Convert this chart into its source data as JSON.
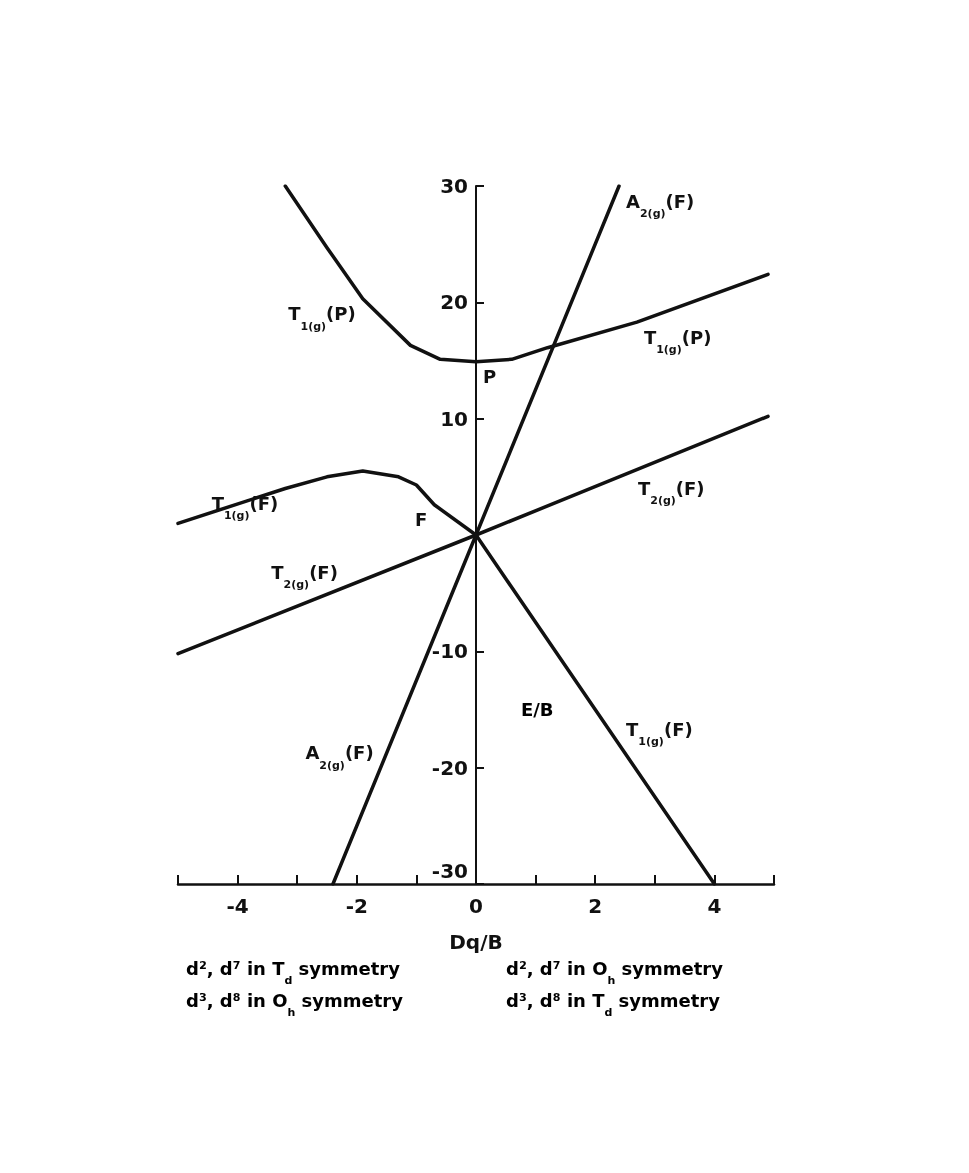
{
  "chart_data": {
    "type": "line",
    "xlabel": "Dq/B",
    "ylabel": "E/B",
    "xlim": [
      -5,
      5
    ],
    "ylim": [
      -30,
      30
    ],
    "xticks": [
      {
        "value": -5,
        "label": null
      },
      -4,
      {
        "value": -3,
        "label": null
      },
      -2,
      {
        "value": -1,
        "label": null
      },
      0,
      {
        "value": 1,
        "label": null
      },
      2,
      {
        "value": 3,
        "label": null
      },
      4,
      {
        "value": 5,
        "label": null
      }
    ],
    "yticks": [
      -30,
      -20,
      -10,
      10,
      20,
      30
    ],
    "marker": "none",
    "line_style": "solid",
    "series": [
      {
        "color": "#111111",
        "x": [
          -2.4,
          0,
          2.4
        ],
        "values": [
          -30,
          0,
          30
        ]
      },
      {
        "color": "#111111",
        "x": [
          -5,
          0,
          4.9
        ],
        "values": [
          -10.2,
          0,
          10.2
        ]
      },
      {
        "color": "#111111",
        "x": [
          -5,
          -3.2,
          -2.5,
          -1.9,
          -1.3,
          -1.0,
          -0.7,
          0,
          4
        ],
        "values": [
          1,
          4,
          5,
          5.5,
          5,
          4.3,
          2.6,
          0,
          -30
        ]
      },
      {
        "color": "#111111",
        "x": [
          -3.2,
          -2.5,
          -1.9,
          -1.1,
          -0.6,
          0,
          0.6,
          1.2,
          2.7,
          4.9
        ],
        "values": [
          30,
          24.7,
          20.3,
          16.3,
          15.1,
          14.9,
          15.1,
          16.1,
          18.3,
          22.4
        ]
      }
    ],
    "annotations": [
      {
        "text": "A$_{2(g)}$(F)",
        "x": 2.4,
        "y": 30
      },
      {
        "text": "T$_{1(g)}$(P)",
        "x": -1.9,
        "y": 20.3
      },
      {
        "text": "T$_{1(g)}$(P)",
        "x": 2.7,
        "y": 18.3
      },
      {
        "text": "P",
        "x": 0,
        "y": 14.9
      },
      {
        "text": "T$_{2(g)}$(F)",
        "x": 2.6,
        "y": 5.3
      },
      {
        "text": "T$_{1(g)}$(F)",
        "x": -3.2,
        "y": 4
      },
      {
        "text": "F",
        "x": -0.7,
        "y": 2.6
      },
      {
        "text": "T$_{2(g)}$(F)",
        "x": -2.2,
        "y": -4.5
      },
      {
        "text": "T$_{1(g)}$(F)",
        "x": 2.4,
        "y": -18
      },
      {
        "text": "A$_{2(g)}$(F)",
        "x": -1.6,
        "y": -20
      },
      "d², d⁷ in T$_{d}$ symmetry",
      "d², d⁷ in O$_{h}$ symmetry",
      "d³, d⁸ in O$_{h}$ symmetry",
      "d³, d⁸ in T$_{d}$ symmetry"
    ]
  }
}
